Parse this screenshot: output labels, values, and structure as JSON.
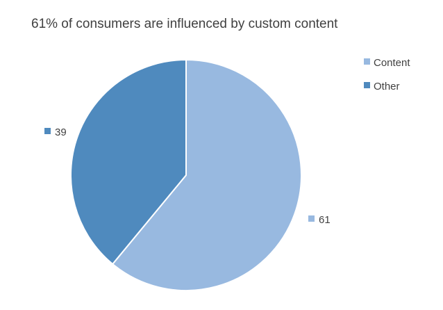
{
  "chart_data": {
    "type": "pie",
    "title": "61% of consumers are influenced by custom content",
    "categories": [
      "Content",
      "Other"
    ],
    "values": [
      61,
      39
    ],
    "colors": [
      "#98b9e0",
      "#4f8abe"
    ],
    "start_angle_deg": 0,
    "direction": "clockwise",
    "legend_position": "top-right",
    "data_labels": [
      "61",
      "39"
    ]
  }
}
